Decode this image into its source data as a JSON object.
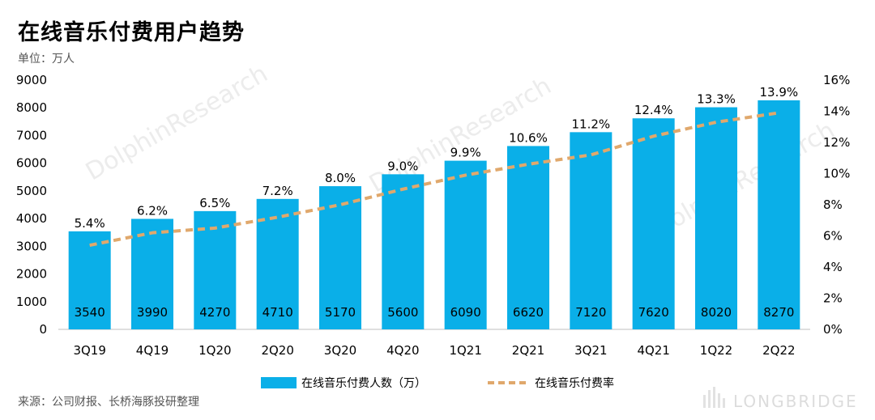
{
  "title": "在线音乐付费用户趋势",
  "unit": "单位：万人",
  "source": "来源：公司财报、长桥海豚投研整理",
  "brand": "LONGBRIDGE",
  "chart_data": {
    "type": "bar",
    "title": "在线音乐付费用户趋势",
    "categories": [
      "3Q19",
      "4Q19",
      "1Q20",
      "2Q20",
      "3Q20",
      "4Q20",
      "1Q21",
      "2Q21",
      "3Q21",
      "4Q21",
      "1Q22",
      "2Q22"
    ],
    "left_axis": {
      "min": 0,
      "max": 9000,
      "step": 1000,
      "ticks": [
        "0",
        "1000",
        "2000",
        "3000",
        "4000",
        "5000",
        "6000",
        "7000",
        "8000",
        "9000"
      ]
    },
    "right_axis": {
      "min": 0,
      "max": 16,
      "step": 2,
      "ticks": [
        "0%",
        "2%",
        "4%",
        "6%",
        "8%",
        "10%",
        "12%",
        "14%",
        "16%"
      ]
    },
    "series": [
      {
        "name": "在线音乐付费人数（万）",
        "type": "bar",
        "axis": "left",
        "color": "#0AAFE8",
        "values": [
          3540,
          3990,
          4270,
          4710,
          5170,
          5600,
          6090,
          6620,
          7120,
          7620,
          8020,
          8270
        ],
        "labels": [
          "3540",
          "3990",
          "4270",
          "4710",
          "5170",
          "5600",
          "6090",
          "6620",
          "7120",
          "7620",
          "8020",
          "8270"
        ]
      },
      {
        "name": "在线音乐付费率",
        "type": "line",
        "axis": "right",
        "color": "#E0A86C",
        "dashed": true,
        "values": [
          5.4,
          6.2,
          6.5,
          7.2,
          8.0,
          9.0,
          9.9,
          10.6,
          11.2,
          12.4,
          13.3,
          13.9
        ],
        "labels": [
          "5.4%",
          "6.2%",
          "6.5%",
          "7.2%",
          "8.0%",
          "9.0%",
          "9.9%",
          "10.6%",
          "11.2%",
          "12.4%",
          "13.3%",
          "13.9%"
        ]
      }
    ],
    "legend_position": "bottom"
  }
}
